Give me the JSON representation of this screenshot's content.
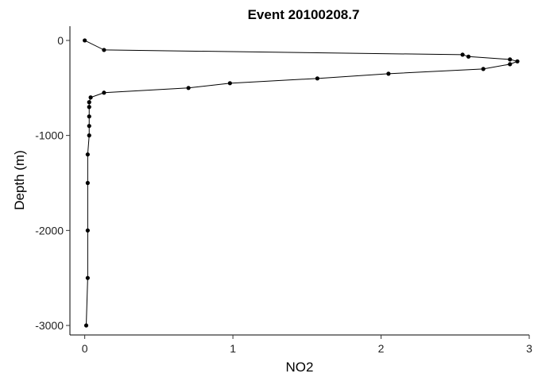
{
  "chart_data": {
    "type": "line",
    "title": "Event 20100208.7",
    "xlabel": "NO2",
    "ylabel": "Depth (m)",
    "xlim": [
      -0.1,
      3.0
    ],
    "ylim": [
      -3100,
      150
    ],
    "xticks": [
      0,
      1,
      2,
      3
    ],
    "yticks": [
      0,
      -1000,
      -2000,
      -3000
    ],
    "xtick_labels": [
      "0",
      "1",
      "2",
      "3"
    ],
    "ytick_labels": [
      "0",
      "-1000",
      "-2000",
      "-3000"
    ],
    "grid": false,
    "series": [
      {
        "points": [
          {
            "x": 0.0,
            "y": 0
          },
          {
            "x": 0.13,
            "y": -100
          },
          {
            "x": 2.55,
            "y": -150
          },
          {
            "x": 2.59,
            "y": -170
          },
          {
            "x": 2.87,
            "y": -200
          },
          {
            "x": 2.92,
            "y": -220
          },
          {
            "x": 2.87,
            "y": -250
          },
          {
            "x": 2.69,
            "y": -300
          },
          {
            "x": 2.05,
            "y": -350
          },
          {
            "x": 1.57,
            "y": -400
          },
          {
            "x": 0.98,
            "y": -450
          },
          {
            "x": 0.7,
            "y": -500
          },
          {
            "x": 0.13,
            "y": -550
          },
          {
            "x": 0.04,
            "y": -600
          },
          {
            "x": 0.03,
            "y": -650
          },
          {
            "x": 0.03,
            "y": -700
          },
          {
            "x": 0.03,
            "y": -800
          },
          {
            "x": 0.03,
            "y": -900
          },
          {
            "x": 0.03,
            "y": -1000
          },
          {
            "x": 0.02,
            "y": -1200
          },
          {
            "x": 0.02,
            "y": -1500
          },
          {
            "x": 0.02,
            "y": -2000
          },
          {
            "x": 0.02,
            "y": -2500
          },
          {
            "x": 0.01,
            "y": -3000
          }
        ]
      }
    ]
  }
}
